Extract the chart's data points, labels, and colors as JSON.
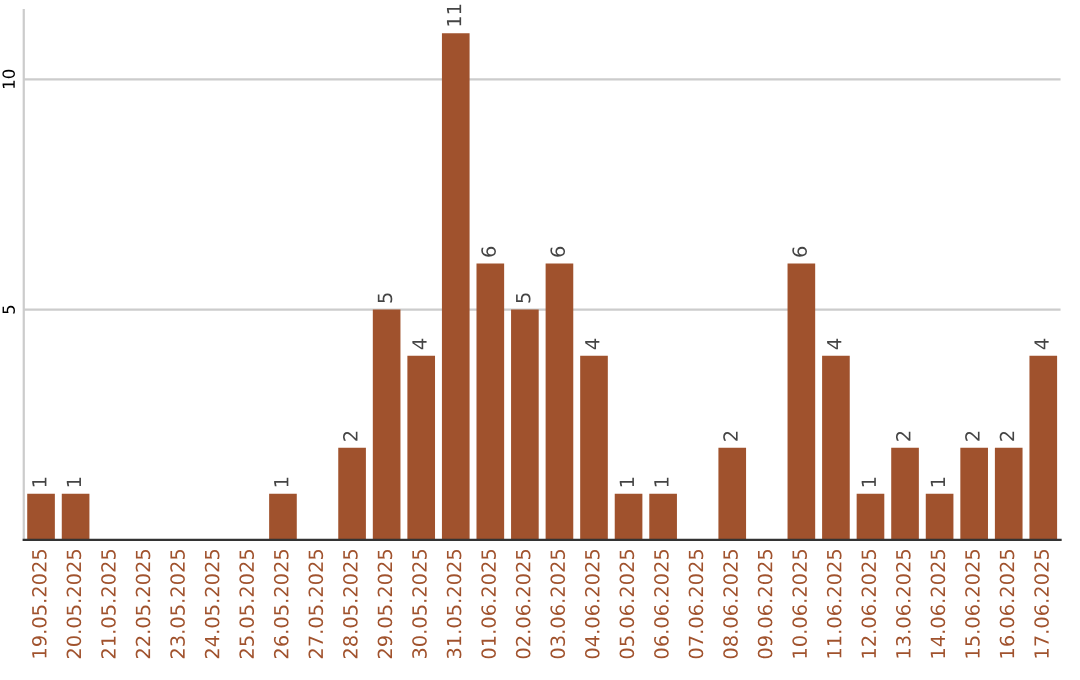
{
  "chart_data": {
    "type": "bar",
    "categories": [
      "19.05.2025",
      "20.05.2025",
      "21.05.2025",
      "22.05.2025",
      "23.05.2025",
      "24.05.2025",
      "25.05.2025",
      "26.05.2025",
      "27.05.2025",
      "28.05.2025",
      "29.05.2025",
      "30.05.2025",
      "31.05.2025",
      "01.06.2025",
      "02.06.2025",
      "03.06.2025",
      "04.06.2025",
      "05.06.2025",
      "06.06.2025",
      "07.06.2025",
      "08.06.2025",
      "09.06.2025",
      "10.06.2025",
      "11.06.2025",
      "12.06.2025",
      "13.06.2025",
      "14.06.2025",
      "15.06.2025",
      "16.06.2025",
      "17.06.2025"
    ],
    "values": [
      1,
      1,
      0,
      0,
      0,
      0,
      0,
      1,
      0,
      2,
      5,
      4,
      11,
      6,
      5,
      6,
      4,
      1,
      1,
      0,
      2,
      0,
      6,
      4,
      1,
      2,
      1,
      2,
      2,
      4
    ],
    "value_labels": [
      "1",
      "1",
      null,
      null,
      null,
      null,
      null,
      "1",
      null,
      "2",
      "5",
      "4",
      "11",
      "6",
      "5",
      "6",
      "4",
      "1",
      "1",
      null,
      "2",
      null,
      "6",
      "4",
      "1",
      "2",
      "1",
      "2",
      "2",
      "4"
    ],
    "color": "#a0522d",
    "ylim": [
      0,
      11.5
    ],
    "yticks": [
      5,
      10
    ],
    "grid": "y"
  }
}
